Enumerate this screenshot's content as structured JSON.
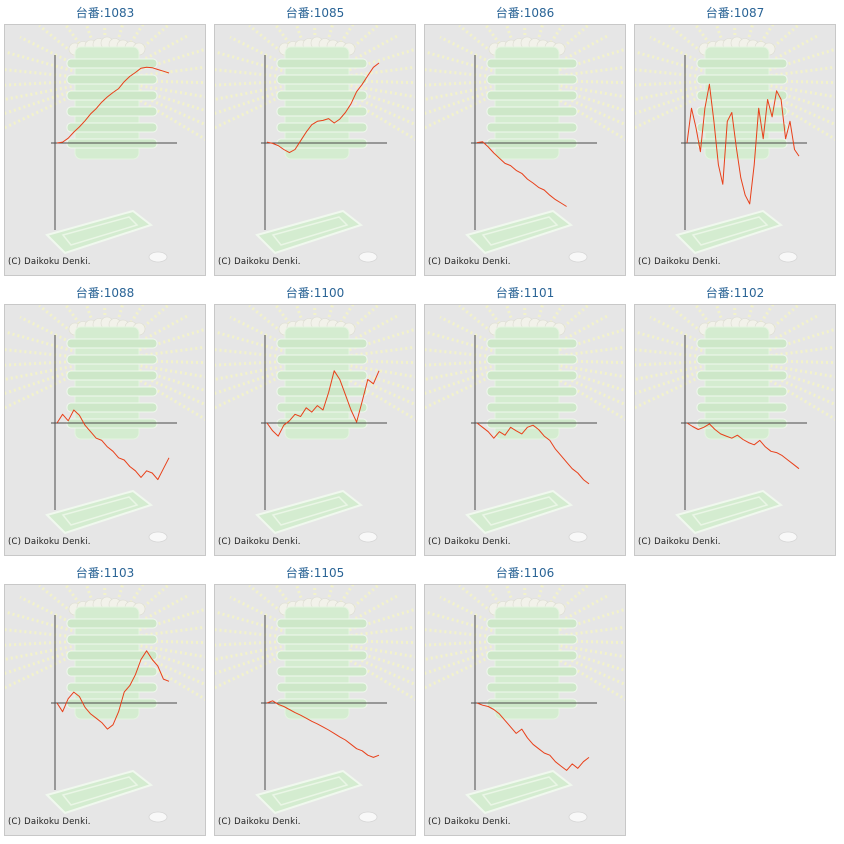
{
  "copyright": "(C) Daikoku Denki.",
  "colors": {
    "line": "#e8401a",
    "axis": "#4a4a4a",
    "title": "#2a6496",
    "frame_bg": "#e6e6e6",
    "ray": "#f4f4c8",
    "machine": "#d4ecd0"
  },
  "icons": [
    "sunburst-background-icon",
    "pachinko-box-icon",
    "medal-tray-icon",
    "coin-icon"
  ],
  "chart_data": [
    {
      "type": "line",
      "title": "台番:1083",
      "x": [
        0,
        5,
        10,
        15,
        20,
        25,
        30,
        35,
        40,
        45,
        50,
        55,
        60,
        65,
        70,
        75,
        80,
        85,
        90,
        95,
        100
      ],
      "y": [
        0.0,
        0.2,
        1.1,
        2.5,
        3.7,
        5.1,
        6.7,
        7.9,
        9.4,
        10.6,
        11.6,
        12.5,
        14.1,
        15.3,
        16.2,
        17.2,
        17.4,
        17.3,
        16.9,
        16.5,
        16.1
      ]
    },
    {
      "type": "line",
      "title": "台番:1085",
      "x": [
        0,
        5,
        10,
        15,
        20,
        25,
        30,
        35,
        40,
        45,
        50,
        55,
        60,
        65,
        70,
        75,
        80,
        85,
        90,
        95,
        100
      ],
      "y": [
        0.2,
        -0.1,
        -0.6,
        -1.5,
        -2.2,
        -1.5,
        0.5,
        2.5,
        4.2,
        5.0,
        5.2,
        5.6,
        4.6,
        5.5,
        7.0,
        9.0,
        11.8,
        13.5,
        15.5,
        17.4,
        18.4
      ]
    },
    {
      "type": "line",
      "title": "台番:1086",
      "x": [
        0,
        5,
        10,
        15,
        20,
        25,
        30,
        35,
        40,
        45,
        50,
        55,
        60,
        65,
        70,
        75,
        80
      ],
      "y": [
        0.1,
        0.3,
        -0.9,
        -2.3,
        -3.5,
        -4.7,
        -5.2,
        -6.3,
        -7.0,
        -8.3,
        -9.2,
        -10.2,
        -10.8,
        -12.0,
        -13.0,
        -13.8,
        -14.6
      ]
    },
    {
      "type": "line",
      "title": "台番:1087",
      "x": [
        0,
        4,
        8,
        12,
        16,
        20,
        24,
        28,
        32,
        36,
        40,
        44,
        48,
        52,
        56,
        60,
        64,
        68,
        72,
        76,
        80,
        84,
        88,
        92,
        96,
        100
      ],
      "y": [
        0.0,
        8.0,
        3.5,
        -2.0,
        8.0,
        13.5,
        5.0,
        -5.0,
        -9.5,
        5.0,
        7.0,
        -1.0,
        -8.0,
        -12.0,
        -14.0,
        -5.0,
        8.0,
        1.0,
        10.0,
        6.0,
        12.0,
        10.0,
        1.0,
        5.0,
        -1.5,
        -3.0
      ]
    },
    {
      "type": "line",
      "title": "台番:1088",
      "x": [
        0,
        5,
        10,
        15,
        20,
        25,
        30,
        35,
        40,
        45,
        50,
        55,
        60,
        65,
        70,
        75,
        80,
        85,
        90,
        95,
        100
      ],
      "y": [
        0.0,
        2.0,
        0.5,
        3.0,
        1.8,
        -0.5,
        -2.0,
        -3.5,
        -4.0,
        -5.5,
        -6.5,
        -8.0,
        -8.5,
        -10.0,
        -11.0,
        -12.5,
        -11.0,
        -11.5,
        -13.0,
        -10.5,
        -8.0
      ]
    },
    {
      "type": "line",
      "title": "台番:1100",
      "x": [
        0,
        5,
        10,
        15,
        20,
        25,
        30,
        35,
        40,
        45,
        50,
        55,
        60,
        65,
        70,
        75,
        80,
        85,
        90,
        95,
        100
      ],
      "y": [
        0.0,
        -1.8,
        -3.0,
        -0.5,
        0.5,
        2.0,
        1.5,
        3.5,
        2.5,
        4.0,
        3.0,
        7.0,
        12.0,
        10.0,
        6.5,
        3.0,
        0.2,
        5.0,
        10.0,
        9.0,
        12.0
      ]
    },
    {
      "type": "line",
      "title": "台番:1101",
      "x": [
        0,
        5,
        10,
        15,
        20,
        25,
        30,
        35,
        40,
        45,
        50,
        55,
        60,
        65,
        70,
        75,
        80,
        85,
        90,
        95,
        100
      ],
      "y": [
        0.0,
        -1.0,
        -2.0,
        -3.5,
        -2.0,
        -2.8,
        -1.0,
        -1.8,
        -2.5,
        -1.0,
        -0.5,
        -1.5,
        -3.0,
        -4.0,
        -6.0,
        -7.5,
        -9.0,
        -10.5,
        -11.5,
        -13.0,
        -14.0
      ]
    },
    {
      "type": "line",
      "title": "台番:1102",
      "x": [
        0,
        5,
        10,
        15,
        20,
        25,
        30,
        35,
        40,
        45,
        50,
        55,
        60,
        65,
        70,
        75,
        80,
        85,
        90,
        95,
        100
      ],
      "y": [
        0.0,
        -0.8,
        -1.5,
        -1.0,
        -0.2,
        -1.5,
        -2.5,
        -3.0,
        -3.5,
        -2.8,
        -3.8,
        -4.5,
        -5.0,
        -4.0,
        -5.5,
        -6.5,
        -6.8,
        -7.5,
        -8.5,
        -9.5,
        -10.5
      ]
    },
    {
      "type": "line",
      "title": "台番:1103",
      "x": [
        0,
        5,
        10,
        15,
        20,
        25,
        30,
        35,
        40,
        45,
        50,
        55,
        60,
        65,
        70,
        75,
        80,
        85,
        90,
        95,
        100
      ],
      "y": [
        0.0,
        -2.0,
        1.0,
        2.5,
        1.5,
        -1.0,
        -2.5,
        -3.5,
        -4.5,
        -6.0,
        -5.0,
        -2.0,
        2.5,
        4.0,
        6.5,
        10.0,
        12.0,
        10.0,
        8.5,
        5.5,
        5.0
      ]
    },
    {
      "type": "line",
      "title": "台番:1105",
      "x": [
        0,
        5,
        10,
        15,
        20,
        25,
        30,
        35,
        40,
        45,
        50,
        55,
        60,
        65,
        70,
        75,
        80,
        85,
        90,
        95,
        100
      ],
      "y": [
        0.0,
        0.5,
        -0.3,
        -0.8,
        -1.5,
        -2.2,
        -2.8,
        -3.5,
        -4.2,
        -4.8,
        -5.5,
        -6.2,
        -7.0,
        -7.8,
        -8.5,
        -9.5,
        -10.5,
        -11.0,
        -12.0,
        -12.5,
        -12.0
      ]
    },
    {
      "type": "line",
      "title": "台番:1106",
      "x": [
        0,
        5,
        10,
        15,
        20,
        25,
        30,
        35,
        40,
        45,
        50,
        55,
        60,
        65,
        70,
        75,
        80,
        85,
        90,
        95,
        100
      ],
      "y": [
        0.0,
        -0.5,
        -0.8,
        -1.5,
        -2.5,
        -4.0,
        -5.5,
        -7.0,
        -6.0,
        -8.0,
        -9.5,
        -10.5,
        -11.5,
        -12.0,
        -13.5,
        -14.5,
        -15.5,
        -14.0,
        -15.0,
        -13.5,
        -12.5
      ]
    }
  ]
}
